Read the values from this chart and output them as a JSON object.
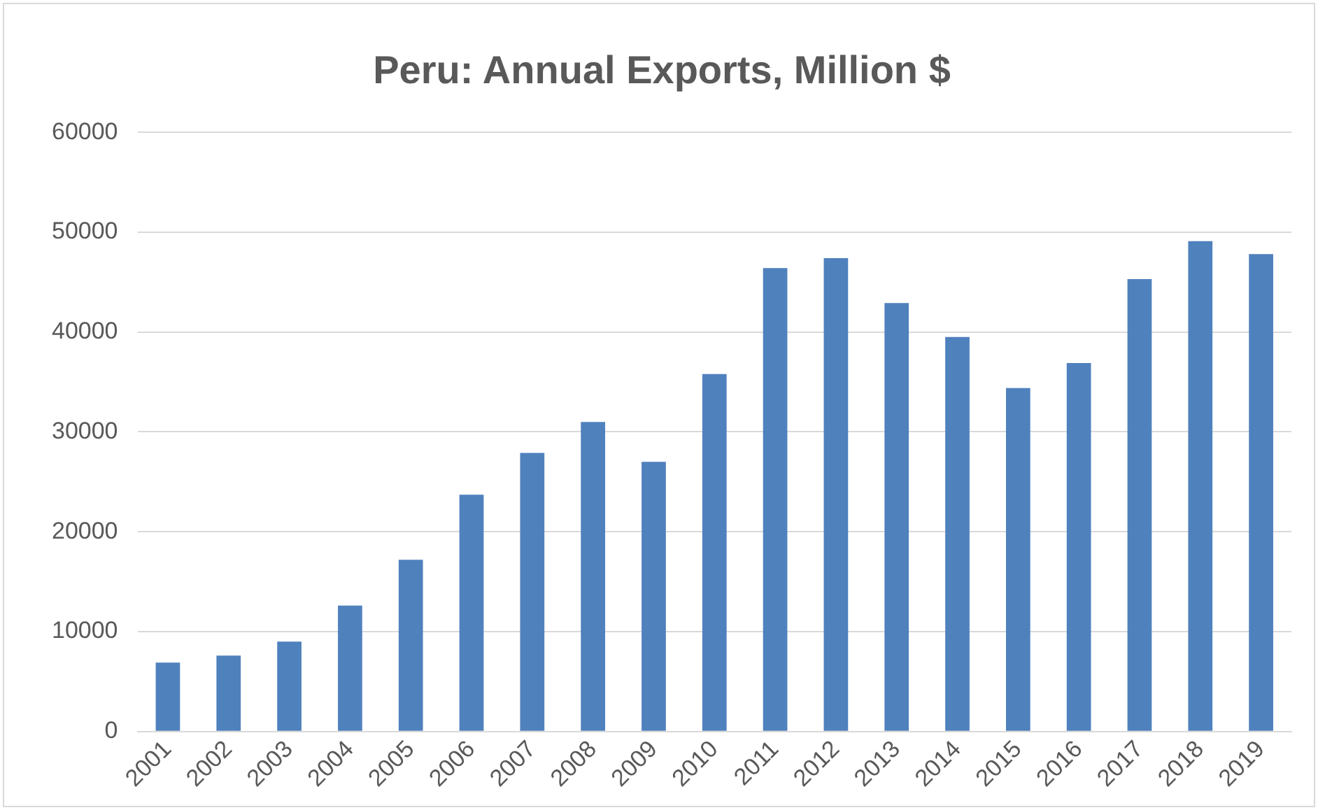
{
  "chart_data": {
    "type": "bar",
    "title": "Peru: Annual Exports, Million $",
    "categories": [
      "2001",
      "2002",
      "2003",
      "2004",
      "2005",
      "2006",
      "2007",
      "2008",
      "2009",
      "2010",
      "2011",
      "2012",
      "2013",
      "2014",
      "2015",
      "2016",
      "2017",
      "2018",
      "2019"
    ],
    "values": [
      6900,
      7600,
      9000,
      12600,
      17200,
      23700,
      27900,
      31000,
      27000,
      35800,
      46400,
      47400,
      42900,
      39500,
      34400,
      36900,
      45300,
      49100,
      47800
    ],
    "color": "#4f81bd",
    "ylim": [
      0,
      60000
    ],
    "yticks": [
      0,
      10000,
      20000,
      30000,
      40000,
      50000,
      60000
    ],
    "grid": "y",
    "legend": false
  }
}
